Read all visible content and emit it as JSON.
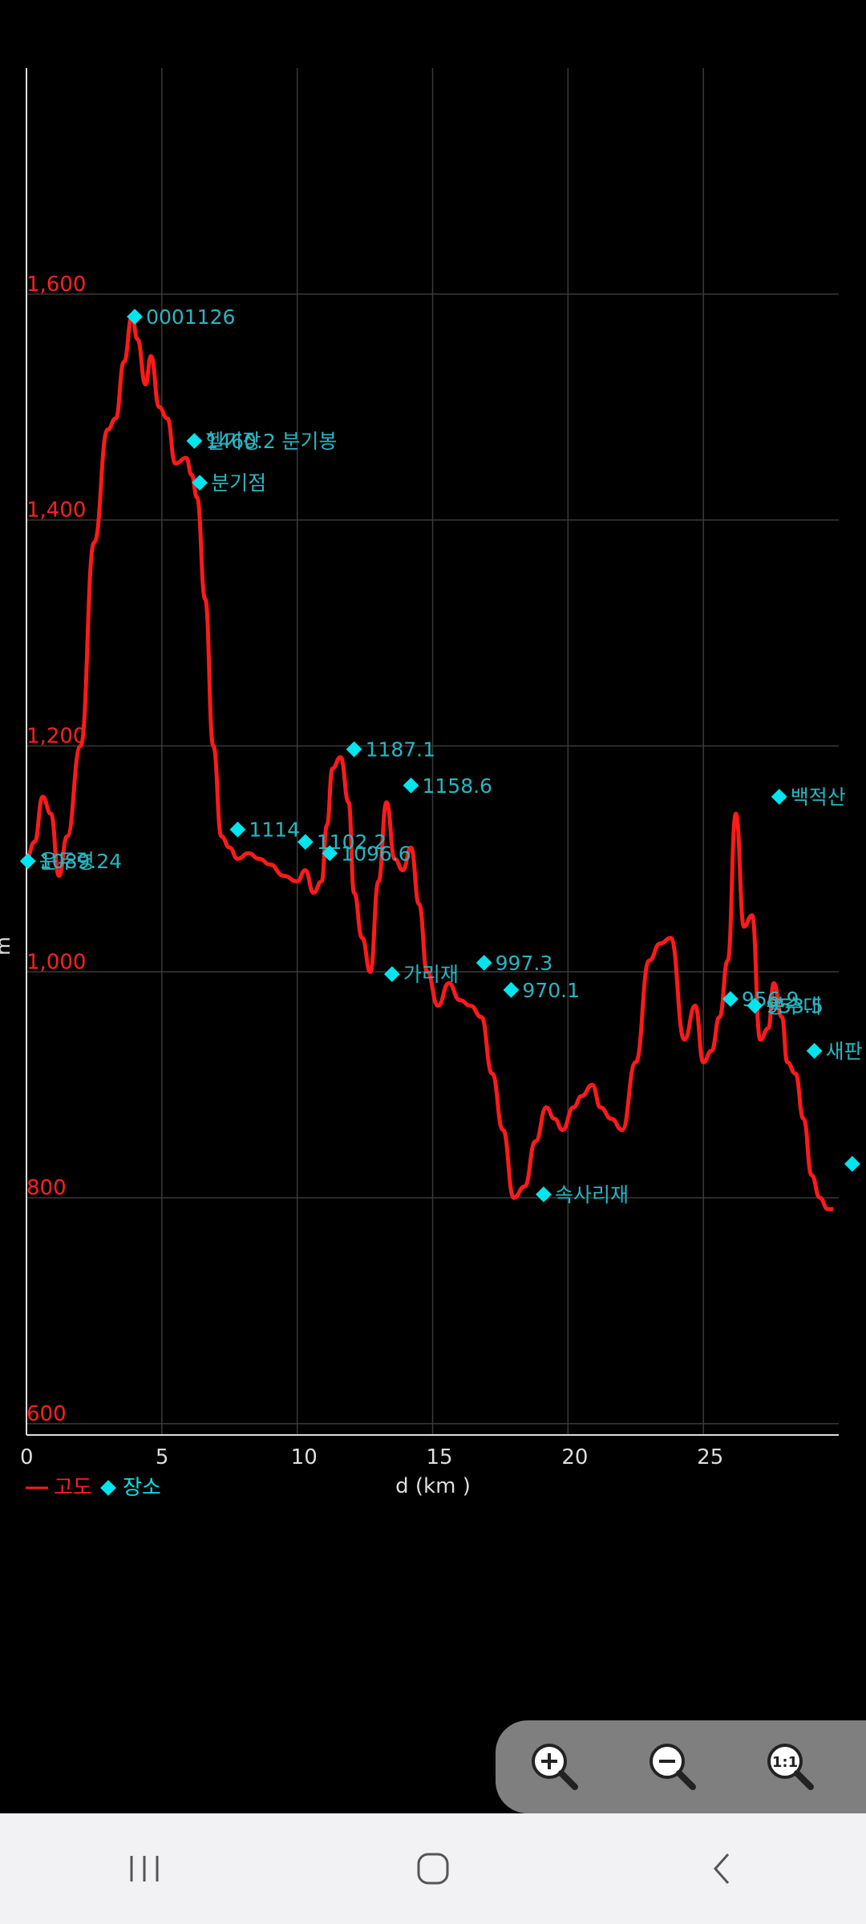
{
  "chart_data": {
    "type": "line",
    "xlabel": "d (km )",
    "ylabel": "m",
    "xlim": [
      0,
      30
    ],
    "ylim": [
      590,
      1800
    ],
    "x_ticks": [
      0,
      5,
      10,
      15,
      20,
      25
    ],
    "x_tick_labels": [
      "0",
      "5",
      "10",
      "15",
      "20",
      "25"
    ],
    "y_ticks": [
      600,
      800,
      1000,
      1200,
      1400,
      1600
    ],
    "y_tick_labels": [
      "600",
      "800",
      "1,000",
      "1,200",
      "1,400",
      "1,600"
    ],
    "grid": true,
    "legend": [
      {
        "label": "고도",
        "color": "#ff2020",
        "marker": "line"
      },
      {
        "label": "장소",
        "color": "#00e5ee",
        "marker": "diamond"
      }
    ],
    "legend_position": "bottom-left",
    "series": [
      {
        "name": "고도",
        "color": "#ff2020",
        "x": [
          0,
          0.3,
          0.6,
          0.9,
          1.2,
          1.5,
          2.0,
          2.5,
          3.0,
          3.3,
          3.6,
          3.9,
          4.1,
          4.4,
          4.6,
          4.9,
          5.2,
          5.5,
          5.9,
          6.1,
          6.3,
          6.6,
          6.9,
          7.2,
          7.5,
          7.8,
          8.2,
          8.6,
          9.0,
          9.5,
          10.0,
          10.3,
          10.6,
          10.9,
          11.1,
          11.3,
          11.6,
          11.9,
          12.1,
          12.4,
          12.7,
          13.0,
          13.3,
          13.6,
          13.9,
          14.2,
          14.5,
          14.8,
          15.2,
          15.6,
          16.0,
          16.4,
          16.8,
          17.2,
          17.6,
          18.0,
          18.4,
          18.8,
          19.2,
          19.5,
          19.8,
          20.2,
          20.5,
          20.9,
          21.2,
          21.6,
          22.0,
          22.5,
          23.0,
          23.4,
          23.8,
          24.3,
          24.7,
          25.0,
          25.3,
          25.6,
          25.9,
          26.2,
          26.5,
          26.8,
          27.1,
          27.4,
          27.6,
          27.9,
          28.1,
          28.4,
          28.7,
          29.0,
          29.3,
          29.6,
          29.8
        ],
        "values": [
          1100,
          1115,
          1155,
          1140,
          1085,
          1120,
          1200,
          1380,
          1480,
          1490,
          1540,
          1580,
          1560,
          1520,
          1545,
          1500,
          1490,
          1450,
          1455,
          1440,
          1420,
          1330,
          1200,
          1120,
          1110,
          1100,
          1105,
          1100,
          1095,
          1085,
          1080,
          1090,
          1070,
          1080,
          1130,
          1180,
          1190,
          1150,
          1070,
          1030,
          1000,
          1080,
          1150,
          1100,
          1090,
          1110,
          1060,
          1000,
          970,
          990,
          975,
          970,
          960,
          910,
          860,
          800,
          810,
          850,
          880,
          870,
          860,
          880,
          890,
          900,
          880,
          870,
          860,
          920,
          1010,
          1025,
          1030,
          940,
          970,
          920,
          930,
          960,
          1010,
          1140,
          1040,
          1050,
          940,
          950,
          990,
          960,
          920,
          910,
          870,
          820,
          800,
          790,
          790
        ]
      }
    ],
    "places": [
      {
        "x": 0.05,
        "y": 1098,
        "label": "운두령"
      },
      {
        "x": 0.05,
        "y": 1098,
        "label": "1089.24"
      },
      {
        "x": 4.0,
        "y": 1580,
        "label": "0001126"
      },
      {
        "x": 6.2,
        "y": 1470,
        "label": "1460.2"
      },
      {
        "x": 6.2,
        "y": 1470,
        "label": "헬기장"
      },
      {
        "x": 6.2,
        "y": 1470,
        "label": "분기봉"
      },
      {
        "x": 6.4,
        "y": 1433,
        "label": "분기점"
      },
      {
        "x": 7.8,
        "y": 1126,
        "label": "1114"
      },
      {
        "x": 10.3,
        "y": 1115,
        "label": "1102.2"
      },
      {
        "x": 11.2,
        "y": 1105,
        "label": "1096.6"
      },
      {
        "x": 12.1,
        "y": 1197,
        "label": "1187.1"
      },
      {
        "x": 14.2,
        "y": 1165,
        "label": "1158.6"
      },
      {
        "x": 13.5,
        "y": 998,
        "label": "가리재"
      },
      {
        "x": 16.9,
        "y": 1008,
        "label": "997.3"
      },
      {
        "x": 17.9,
        "y": 984,
        "label": "970.1"
      },
      {
        "x": 19.1,
        "y": 803,
        "label": "속사리재"
      },
      {
        "x": 26.0,
        "y": 976,
        "label": "956.9"
      },
      {
        "x": 26.9,
        "y": 970,
        "label": "953.5"
      },
      {
        "x": 26.9,
        "y": 970,
        "label": "봉수대"
      },
      {
        "x": 27.8,
        "y": 1155,
        "label": "백적산"
      },
      {
        "x": 29.1,
        "y": 930,
        "label": "새판"
      },
      {
        "x": 30.5,
        "y": 830,
        "label": ""
      }
    ]
  },
  "zoom": {
    "zoom_in": "zoom-in",
    "zoom_out": "zoom-out",
    "reset": "1:1"
  },
  "nav": {
    "recent": "recent-apps",
    "home": "home",
    "back": "back"
  }
}
